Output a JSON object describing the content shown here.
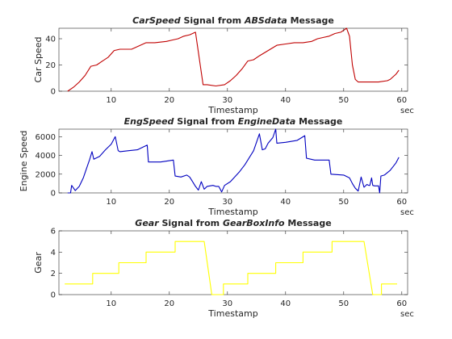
{
  "chart_data": [
    {
      "type": "line",
      "title_parts": [
        {
          "text": "CarSpeed",
          "italic": true
        },
        {
          "text": " Signal from ",
          "italic": false
        },
        {
          "text": "ABSdata",
          "italic": true
        },
        {
          "text": " Message",
          "italic": false
        }
      ],
      "xlabel": "Timestamp",
      "xunit": "sec",
      "ylabel": "Car Speed",
      "xlim": [
        1,
        61
      ],
      "ylim": [
        0,
        48
      ],
      "xticks": [
        10,
        20,
        30,
        40,
        50,
        60
      ],
      "yticks": [
        0,
        20,
        40
      ],
      "color": "#c00000",
      "series": [
        {
          "x": [
            2.5,
            3.5,
            4.5,
            5.5,
            6.5,
            7.5,
            8.5,
            9.5,
            10.5,
            11.5,
            13.5,
            14.5,
            16,
            17.5,
            19.5,
            20.5,
            21.5,
            22.5,
            23.5,
            24.5,
            25.8,
            26.5,
            28,
            29.5,
            30.5,
            31.5,
            32.5,
            33.5,
            34.5,
            35.5,
            37,
            38.5,
            40,
            41.5,
            43,
            44.5,
            45.5,
            46.5,
            47.5,
            48.5,
            49.5,
            50.5,
            51,
            51.5,
            52,
            52.5,
            53.5,
            54.8,
            56,
            57.5,
            58,
            58.5,
            59,
            59.5
          ],
          "y": [
            0,
            3,
            7,
            12,
            19,
            20,
            23,
            26,
            31,
            32,
            32,
            34,
            37,
            37,
            38,
            39,
            40,
            42,
            43,
            45,
            5,
            5,
            4,
            5,
            8,
            12,
            17,
            23,
            24,
            27,
            31,
            35,
            36,
            37,
            37,
            38,
            40,
            41,
            42,
            44,
            45,
            48,
            42,
            20,
            9,
            7,
            7,
            7,
            7,
            8,
            9,
            11,
            13,
            16
          ]
        }
      ]
    },
    {
      "type": "line",
      "title_parts": [
        {
          "text": "EngSpeed",
          "italic": true
        },
        {
          "text": " Signal from ",
          "italic": false
        },
        {
          "text": "EngineData",
          "italic": true
        },
        {
          "text": " Message",
          "italic": false
        }
      ],
      "xlabel": "Timestamp",
      "xunit": "sec",
      "ylabel": "Engine Speed",
      "xlim": [
        1,
        61
      ],
      "ylim": [
        0,
        6800
      ],
      "xticks": [
        10,
        20,
        30,
        40,
        50,
        60
      ],
      "yticks": [
        0,
        2000,
        4000,
        6000
      ],
      "color": "#0000c0",
      "series": [
        {
          "x": [
            2.5,
            3,
            3.2,
            3.8,
            4.5,
            5.2,
            5.8,
            6.3,
            6.7,
            7,
            8,
            9,
            10,
            10.7,
            11.2,
            11.5,
            13,
            14.5,
            15.5,
            16.2,
            16.4,
            18.5,
            20.7,
            21,
            22,
            23,
            23.5,
            24,
            24.5,
            25,
            25.5,
            26,
            26.5,
            27.5,
            28,
            28.5,
            29,
            29.5,
            30.5,
            32,
            33,
            34.5,
            35.5,
            36,
            36.5,
            37,
            37.8,
            38.3,
            38.5,
            40,
            42,
            43.3,
            43.6,
            45,
            47.5,
            47.8,
            50,
            51,
            51.5,
            52,
            52.5,
            53,
            53.5,
            54,
            54.3,
            54.5,
            54.8,
            55,
            55.3,
            56,
            56.2,
            56.4,
            57,
            58,
            59,
            59.5
          ],
          "y": [
            0,
            0,
            800,
            250,
            700,
            1600,
            2700,
            3600,
            4400,
            3600,
            3900,
            4600,
            5200,
            6000,
            4500,
            4400,
            4500,
            4600,
            4900,
            5100,
            3300,
            3300,
            3500,
            1800,
            1700,
            1900,
            1700,
            1200,
            700,
            300,
            1200,
            400,
            700,
            800,
            700,
            700,
            100,
            800,
            1200,
            2200,
            3000,
            4500,
            6300,
            4600,
            4700,
            5300,
            5900,
            6800,
            5300,
            5400,
            5600,
            6100,
            3700,
            3500,
            3500,
            2000,
            1900,
            1600,
            1000,
            500,
            200,
            1700,
            600,
            900,
            800,
            800,
            1600,
            800,
            750,
            750,
            0,
            1800,
            1900,
            2400,
            3200,
            3800
          ]
        }
      ]
    },
    {
      "type": "line",
      "title_parts": [
        {
          "text": "Gear",
          "italic": true
        },
        {
          "text": " Signal from ",
          "italic": false
        },
        {
          "text": "GearBoxInfo",
          "italic": true
        },
        {
          "text": " Message",
          "italic": false
        }
      ],
      "xlabel": "Timestamp",
      "xunit": "sec",
      "ylabel": "Gear",
      "xlim": [
        1,
        61
      ],
      "ylim": [
        0,
        6
      ],
      "xticks": [
        10,
        20,
        30,
        40,
        50,
        60
      ],
      "yticks": [
        0,
        2,
        4,
        6
      ],
      "color": "#ffff00",
      "series": [
        {
          "x": [
            2,
            6.8,
            6.8,
            11.3,
            11.3,
            16,
            16,
            21,
            21,
            26,
            27.3,
            29.3,
            29.3,
            33.5,
            33.5,
            38.3,
            38.3,
            43,
            43,
            48,
            48,
            53.5,
            55,
            55.3,
            56.5,
            56.5,
            59.2
          ],
          "y": [
            1,
            1,
            2,
            2,
            3,
            3,
            4,
            4,
            5,
            5,
            0,
            0,
            1,
            1,
            2,
            2,
            3,
            3,
            4,
            4,
            5,
            5,
            0,
            0,
            0,
            1,
            1
          ]
        }
      ]
    }
  ]
}
